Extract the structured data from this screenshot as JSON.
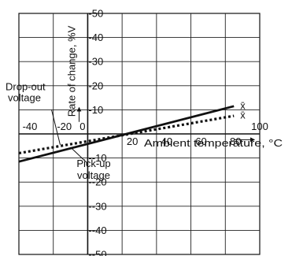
{
  "chart_data": {
    "type": "line",
    "xlabel": "Ambient temperature, °C",
    "ylabel": "Rate of change, %V",
    "xlim": [
      -40,
      100
    ],
    "ylim": [
      -50,
      50
    ],
    "x_ticks": [
      -40,
      -20,
      0,
      20,
      40,
      60,
      80,
      100
    ],
    "y_ticks": [
      -50,
      -40,
      -30,
      -20,
      -10,
      10,
      20,
      30,
      40,
      50
    ],
    "grid": true,
    "series": [
      {
        "name": "Pick-up voltage",
        "style": "solid",
        "end_label": "x̄",
        "x": [
          -40,
          85
        ],
        "y": [
          -11.5,
          11.5
        ]
      },
      {
        "name": "Drop-out voltage",
        "style": "dotted",
        "end_label": "x̄",
        "x": [
          -40,
          85
        ],
        "y": [
          -8,
          7.5
        ]
      }
    ],
    "annotations": [
      {
        "text": "Drop-out",
        "target": "Drop-out voltage"
      },
      {
        "text": "voltage",
        "target": "Drop-out voltage"
      },
      {
        "text": "Pick-up",
        "target": "Pick-up voltage"
      },
      {
        "text": "voltage",
        "target": "Pick-up voltage"
      }
    ]
  }
}
